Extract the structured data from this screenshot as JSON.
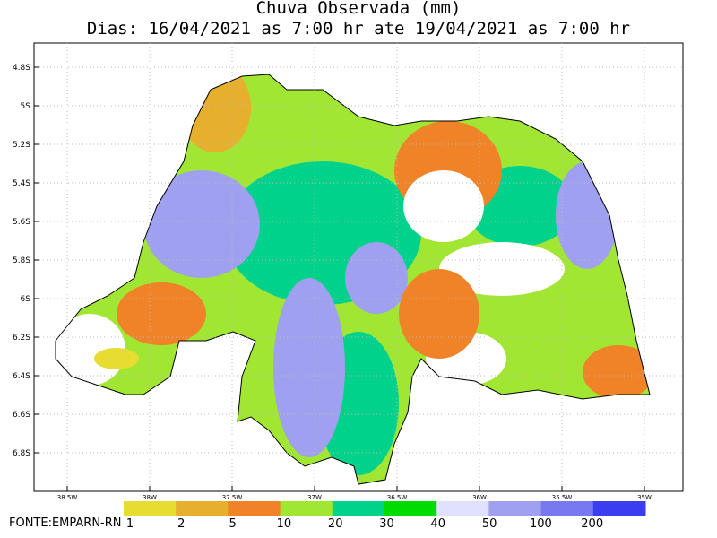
{
  "title": {
    "line1": "Chuva Observada (mm)",
    "line2": "Dias: 16/04/2021 as 7:00 hr ate 19/04/2021 as 7:00 hr"
  },
  "map": {
    "lat_ticks": [
      "4.8S",
      "5S",
      "5.2S",
      "5.4S",
      "5.6S",
      "5.8S",
      "6S",
      "6.2S",
      "6.4S",
      "6.6S",
      "6.8S"
    ],
    "lon_ticks": [
      "38.5W",
      "38W",
      "37.5W",
      "37W",
      "36.5W",
      "36W",
      "35.5W",
      "35W"
    ]
  },
  "legend": {
    "labels": [
      "1",
      "2",
      "5",
      "10",
      "20",
      "30",
      "40",
      "50",
      "100",
      "200"
    ],
    "colors": [
      "#e6dc32",
      "#e6af2d",
      "#f08228",
      "#a0e632",
      "#00d28c",
      "#00dc00",
      "#e1e1ff",
      "#a0a0f0",
      "#7878f0",
      "#3c3cf0"
    ]
  },
  "source": "FONTE:EMPARN-RN"
}
